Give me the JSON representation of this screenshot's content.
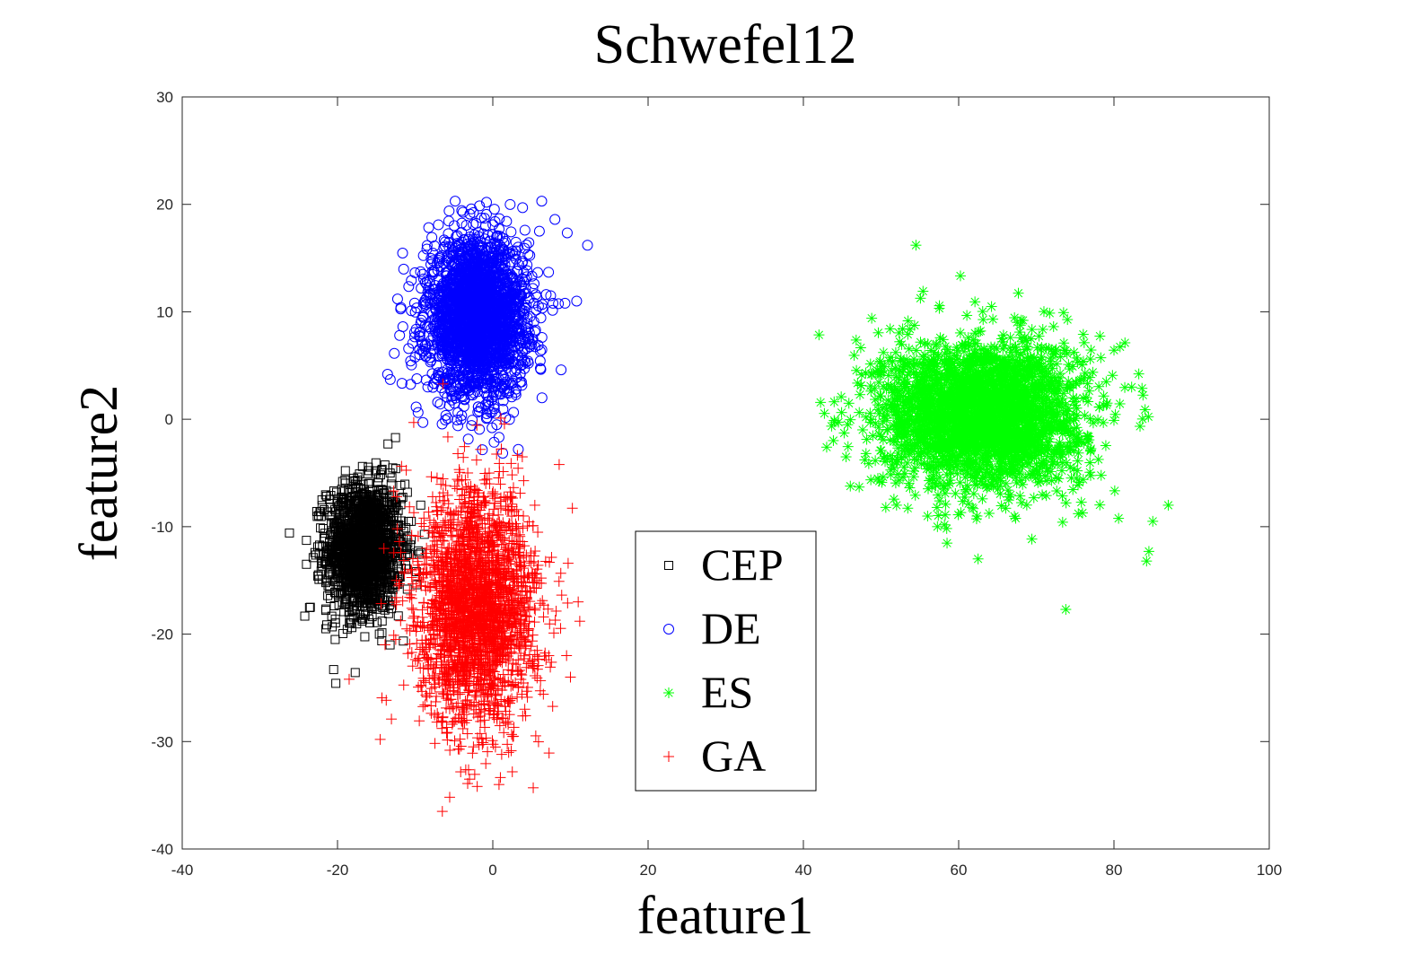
{
  "chart_data": {
    "type": "scatter",
    "title": "Schwefel12",
    "xlabel": "feature1",
    "ylabel": "feature2",
    "xlim": [
      -40,
      100
    ],
    "ylim": [
      -40,
      30
    ],
    "xticks": [
      -40,
      -20,
      0,
      20,
      40,
      60,
      80,
      100
    ],
    "yticks": [
      -40,
      -30,
      -20,
      -10,
      0,
      10,
      20,
      30
    ],
    "xtick_labels": [
      "-40",
      "-20",
      "0",
      "20",
      "40",
      "60",
      "80",
      "100"
    ],
    "ytick_labels": [
      "-40",
      "-30",
      "-20",
      "-10",
      "0",
      "10",
      "20",
      "30"
    ],
    "grid": false,
    "legend_position": "bottom-center",
    "series": [
      {
        "name": "CEP",
        "marker": "square",
        "color": "#000000",
        "center": [
          -16.5,
          -12.0
        ],
        "spread": [
          2.4,
          3.0
        ],
        "count": 1600,
        "points": [
          [
            -13.5,
            -2.3
          ],
          [
            -20.5,
            -23.3
          ],
          [
            -20.3,
            -20.5
          ],
          [
            -23.5,
            -17.5
          ],
          [
            -21.5,
            -19.5
          ],
          [
            -11.0,
            -6.8
          ],
          [
            -12.5,
            -4.6
          ],
          [
            -22.0,
            -7.5
          ],
          [
            -10.5,
            -9.5
          ],
          [
            -24.0,
            -13.5
          ]
        ]
      },
      {
        "name": "DE",
        "marker": "circle",
        "color": "#0000ff",
        "center": [
          -2.0,
          9.5
        ],
        "spread": [
          3.2,
          3.6
        ],
        "count": 2500,
        "points": [
          [
            6.3,
            20.3
          ],
          [
            12.2,
            16.2
          ],
          [
            8.0,
            18.6
          ],
          [
            9.3,
            10.8
          ],
          [
            10.8,
            11.0
          ],
          [
            8.8,
            4.6
          ],
          [
            -13.2,
            3.7
          ],
          [
            -9.0,
            -0.3
          ],
          [
            -4.5,
            -0.6
          ],
          [
            -12.0,
            7.8
          ],
          [
            3.0,
            2.8
          ],
          [
            6.0,
            17.5
          ]
        ]
      },
      {
        "name": "ES",
        "marker": "star",
        "color": "#00ff00",
        "center": [
          63.0,
          0.5
        ],
        "spread": [
          6.5,
          3.4
        ],
        "count": 2800,
        "points": [
          [
            54.5,
            16.2
          ],
          [
            73.8,
            -17.7
          ],
          [
            87.0,
            -8.0
          ],
          [
            84.2,
            -13.2
          ],
          [
            43.0,
            -2.6
          ],
          [
            48.8,
            9.4
          ],
          [
            45.5,
            -3.5
          ],
          [
            84.5,
            -12.3
          ],
          [
            62.5,
            -13.0
          ],
          [
            52.0,
            -8.0
          ],
          [
            68.3,
            9.2
          ],
          [
            85.0,
            -9.5
          ]
        ]
      },
      {
        "name": "GA",
        "marker": "plus",
        "color": "#ff0000",
        "center": [
          -2.0,
          -17.5
        ],
        "spread": [
          3.8,
          5.4
        ],
        "count": 2500,
        "points": [
          [
            -6.5,
            -36.5
          ],
          [
            0.8,
            -34.0
          ],
          [
            -3.0,
            -33.5
          ],
          [
            11.0,
            -17.0
          ],
          [
            11.2,
            -18.8
          ],
          [
            10.0,
            -24.0
          ],
          [
            -18.5,
            -24.2
          ],
          [
            -14.5,
            -29.8
          ],
          [
            -4.5,
            -3.2
          ],
          [
            3.8,
            -3.5
          ],
          [
            -12.5,
            -20.5
          ],
          [
            9.5,
            -22.0
          ]
        ]
      }
    ]
  }
}
